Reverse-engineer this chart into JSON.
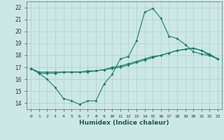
{
  "xlabel": "Humidex (Indice chaleur)",
  "bg_color": "#cce8e4",
  "grid_color": "#aacfcb",
  "line_color": "#1a7a6e",
  "x": [
    0,
    1,
    2,
    3,
    4,
    5,
    6,
    7,
    8,
    9,
    10,
    11,
    12,
    13,
    14,
    15,
    16,
    17,
    18,
    19,
    20,
    21,
    22,
    23
  ],
  "line1": [
    16.9,
    16.5,
    16.0,
    15.3,
    14.4,
    14.2,
    13.9,
    14.2,
    14.2,
    15.6,
    16.4,
    17.7,
    17.9,
    19.2,
    21.6,
    21.9,
    21.1,
    19.6,
    19.4,
    18.9,
    18.3,
    18.1,
    18.0,
    17.7
  ],
  "line2": [
    16.9,
    16.6,
    16.6,
    16.6,
    16.6,
    16.6,
    16.6,
    16.6,
    16.7,
    16.8,
    17.0,
    17.1,
    17.3,
    17.5,
    17.7,
    17.9,
    18.0,
    18.2,
    18.4,
    18.5,
    18.6,
    18.4,
    18.0,
    17.7
  ],
  "line3": [
    16.9,
    16.5,
    16.5,
    16.5,
    16.6,
    16.6,
    16.6,
    16.7,
    16.7,
    16.8,
    16.9,
    17.0,
    17.2,
    17.4,
    17.6,
    17.8,
    18.0,
    18.2,
    18.4,
    18.5,
    18.6,
    18.4,
    18.1,
    17.7
  ],
  "ylim": [
    13.5,
    22.5
  ],
  "yticks": [
    14,
    15,
    16,
    17,
    18,
    19,
    20,
    21,
    22
  ],
  "xticks": [
    0,
    1,
    2,
    3,
    4,
    5,
    6,
    7,
    8,
    9,
    10,
    11,
    12,
    13,
    14,
    15,
    16,
    17,
    18,
    19,
    20,
    21,
    22,
    23
  ],
  "xlabels": [
    "0",
    "1",
    "2",
    "3",
    "4",
    "5",
    "6",
    "7",
    "8",
    "9",
    "10",
    "11",
    "12",
    "13",
    "14",
    "15",
    "16",
    "17",
    "18",
    "19",
    "20",
    "21",
    "22",
    "23"
  ]
}
